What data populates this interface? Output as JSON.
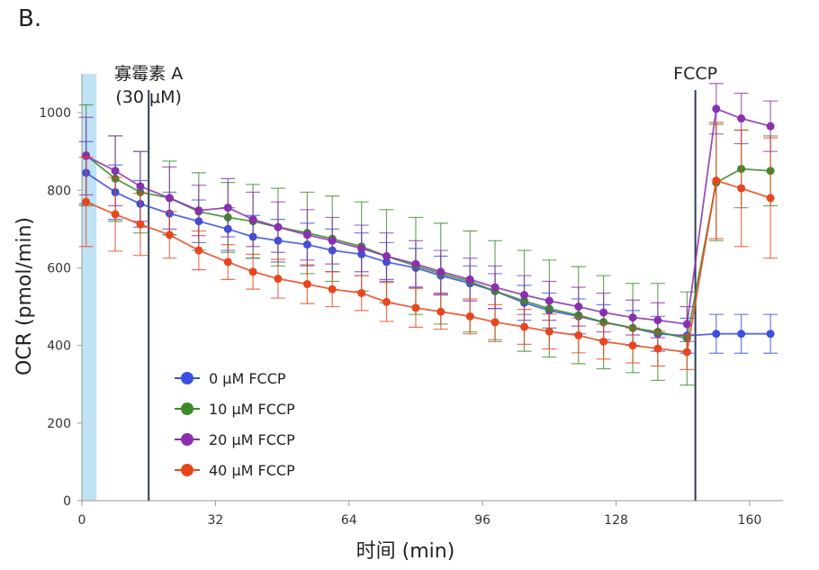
{
  "panel_label": "B.",
  "chart_data": {
    "type": "line",
    "xlabel": "时间 (min)",
    "ylabel": "OCR (pmol/min)",
    "xlim": [
      0,
      168
    ],
    "ylim": [
      0,
      1100
    ],
    "x_ticks": [
      0,
      32,
      64,
      96,
      128,
      160
    ],
    "y_ticks": [
      0,
      200,
      400,
      600,
      800,
      1000
    ],
    "shaded_region": {
      "x0": 0,
      "x1": 3.5,
      "color": "#bfe3f5"
    },
    "event_lines": [
      {
        "x": 16,
        "label_lines": [
          "寡霉素 A",
          "(30 μM)"
        ]
      },
      {
        "x": 147,
        "label_lines": [
          "FCCP"
        ]
      }
    ],
    "legend_position": "lower-left",
    "series": [
      {
        "name": "0 μM FCCP",
        "color": "#3b4fe0",
        "x": [
          1,
          8,
          14,
          21,
          28,
          35,
          41,
          47,
          54,
          60,
          67,
          73,
          80,
          86,
          93,
          99,
          106,
          112,
          119,
          125,
          132,
          138,
          145,
          152,
          158,
          165
        ],
        "y": [
          845,
          795,
          765,
          740,
          720,
          700,
          680,
          670,
          660,
          645,
          635,
          615,
          600,
          580,
          560,
          540,
          510,
          490,
          475,
          460,
          445,
          430,
          425,
          430,
          430,
          430
        ],
        "err": [
          80,
          70,
          60,
          55,
          55,
          55,
          55,
          55,
          55,
          55,
          55,
          50,
          50,
          50,
          45,
          45,
          45,
          45,
          45,
          45,
          45,
          45,
          45,
          50,
          50,
          50
        ]
      },
      {
        "name": "10 μM FCCP",
        "color": "#3d8a2a",
        "x": [
          1,
          8,
          14,
          21,
          28,
          35,
          41,
          47,
          54,
          60,
          67,
          73,
          80,
          86,
          93,
          99,
          106,
          112,
          119,
          125,
          132,
          138,
          145,
          152,
          158,
          165
        ],
        "y": [
          890,
          830,
          795,
          780,
          745,
          730,
          720,
          705,
          690,
          675,
          655,
          630,
          605,
          585,
          565,
          540,
          515,
          495,
          478,
          460,
          445,
          435,
          418,
          820,
          855,
          850
        ],
        "err": [
          130,
          110,
          105,
          95,
          100,
          90,
          95,
          100,
          105,
          110,
          115,
          120,
          125,
          130,
          130,
          130,
          130,
          125,
          125,
          120,
          115,
          125,
          120,
          150,
          100,
          90
        ]
      },
      {
        "name": "20 μM FCCP",
        "color": "#8a2fb0",
        "x": [
          1,
          8,
          14,
          21,
          28,
          35,
          41,
          47,
          54,
          60,
          67,
          73,
          80,
          86,
          93,
          99,
          106,
          112,
          119,
          125,
          132,
          138,
          145,
          152,
          158,
          165
        ],
        "y": [
          888,
          850,
          810,
          780,
          748,
          755,
          725,
          705,
          685,
          670,
          650,
          630,
          610,
          590,
          570,
          550,
          530,
          515,
          500,
          485,
          472,
          465,
          455,
          1010,
          985,
          965
        ],
        "err": [
          100,
          90,
          90,
          80,
          65,
          75,
          70,
          65,
          65,
          60,
          60,
          60,
          60,
          55,
          55,
          55,
          50,
          50,
          50,
          50,
          45,
          45,
          45,
          65,
          65,
          65
        ]
      },
      {
        "name": "40 μM FCCP",
        "color": "#e8461e",
        "x": [
          1,
          8,
          14,
          21,
          28,
          35,
          41,
          47,
          54,
          60,
          67,
          73,
          80,
          86,
          93,
          99,
          106,
          112,
          119,
          125,
          132,
          138,
          145,
          152,
          158,
          165
        ],
        "y": [
          770,
          738,
          712,
          685,
          645,
          615,
          590,
          572,
          558,
          545,
          535,
          512,
          497,
          487,
          475,
          460,
          448,
          436,
          426,
          410,
          400,
          392,
          383,
          825,
          805,
          780
        ],
        "err": [
          115,
          95,
          80,
          60,
          50,
          45,
          45,
          50,
          50,
          45,
          45,
          50,
          50,
          45,
          45,
          45,
          45,
          45,
          45,
          45,
          45,
          45,
          45,
          150,
          150,
          155
        ]
      }
    ]
  }
}
